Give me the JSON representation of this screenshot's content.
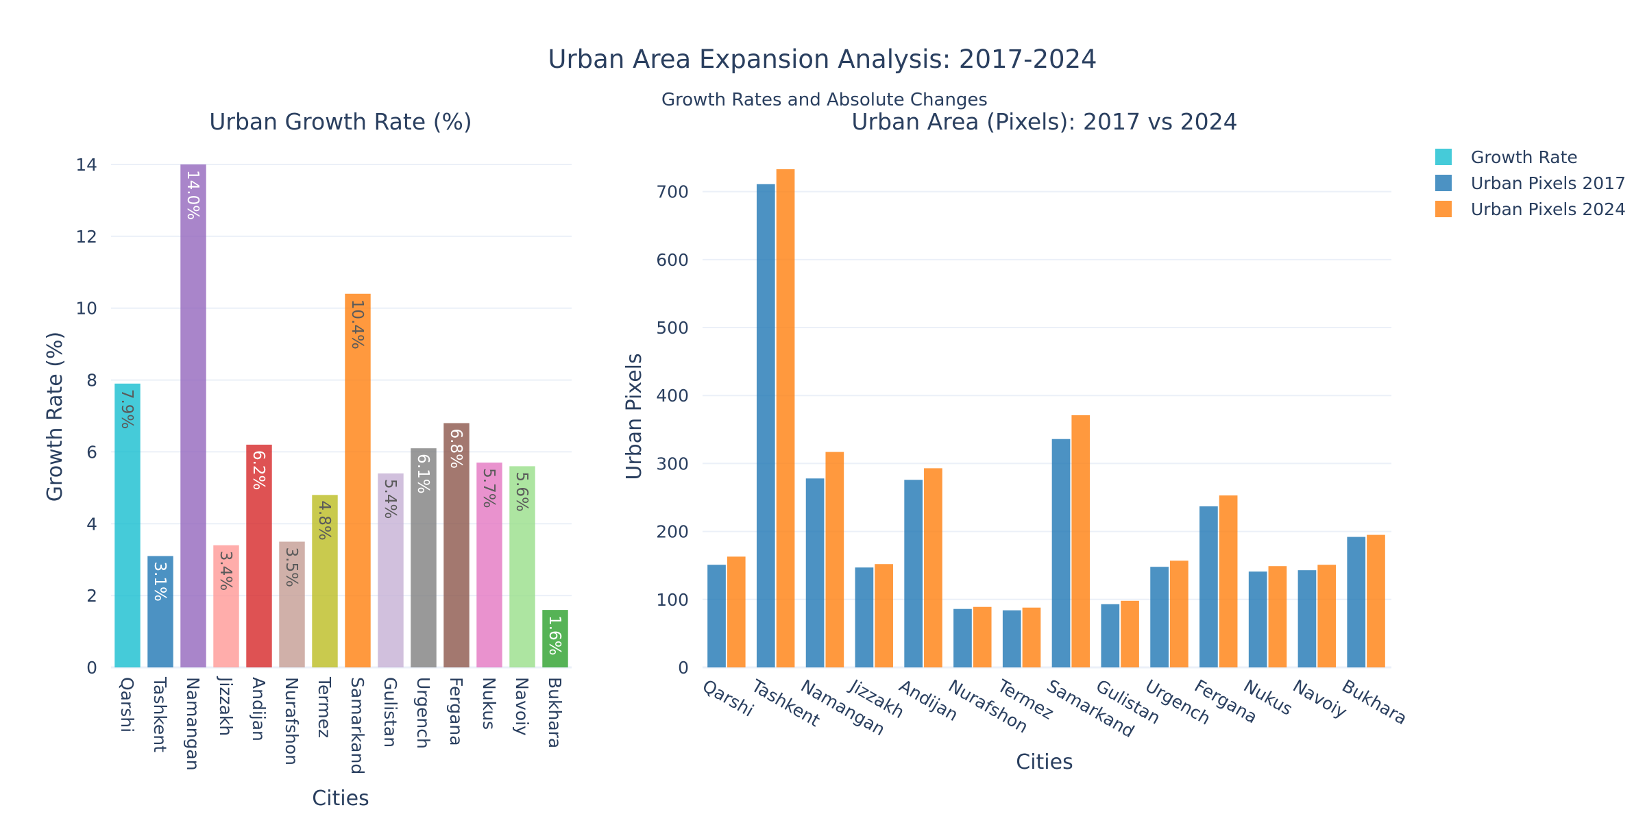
{
  "title": "Urban Area Expansion Analysis: 2017-2024",
  "subtitle": "Growth Rates and Absolute Changes",
  "chart_data": [
    {
      "type": "bar",
      "title": "Urban Growth Rate (%)",
      "xlabel": "Cities",
      "ylabel": "Growth Rate (%)",
      "ylim": [
        0,
        14
      ],
      "yticks": [
        0,
        2,
        4,
        6,
        8,
        10,
        12,
        14
      ],
      "grid": true,
      "categories": [
        "Qarshi",
        "Tashkent",
        "Namangan",
        "Jizzakh",
        "Andijan",
        "Nurafshon",
        "Termez",
        "Samarkand",
        "Gulistan",
        "Urgench",
        "Fergana",
        "Nukus",
        "Navoiy",
        "Bukhara"
      ],
      "values": [
        7.9,
        3.1,
        14.0,
        3.4,
        6.2,
        3.5,
        4.8,
        10.4,
        5.4,
        6.1,
        6.8,
        5.7,
        5.6,
        1.6
      ],
      "data_labels": [
        "7.9%",
        "3.1%",
        "14.0%",
        "3.4%",
        "6.2%",
        "3.5%",
        "4.8%",
        "10.4%",
        "5.4%",
        "6.1%",
        "6.8%",
        "5.7%",
        "5.6%",
        "1.6%"
      ],
      "bar_colors": [
        "#17becf",
        "#1f77b4",
        "#9467bd",
        "#ff9896",
        "#d62728",
        "#c49c94",
        "#bcbd22",
        "#ff7f0e",
        "#c5b0d5",
        "#7f7f7f",
        "#8c564b",
        "#e377c2",
        "#98df8a",
        "#2ca02c"
      ],
      "label_colors": [
        "#5a5a5a",
        "#ffffff",
        "#ffffff",
        "#5a5a5a",
        "#ffffff",
        "#5a5a5a",
        "#5a5a5a",
        "#5a5a5a",
        "#5a5a5a",
        "#ffffff",
        "#ffffff",
        "#5a5a5a",
        "#5a5a5a",
        "#ffffff"
      ]
    },
    {
      "type": "bar",
      "title": "Urban Area (Pixels): 2017 vs 2024",
      "xlabel": "Cities",
      "ylabel": "Urban Pixels",
      "ylim": [
        0,
        740
      ],
      "yticks": [
        0,
        100,
        200,
        300,
        400,
        500,
        600,
        700
      ],
      "grid": true,
      "categories": [
        "Qarshi",
        "Tashkent",
        "Namangan",
        "Jizzakh",
        "Andijan",
        "Nurafshon",
        "Termez",
        "Samarkand",
        "Gulistan",
        "Urgench",
        "Fergana",
        "Nukus",
        "Navoiy",
        "Bukhara"
      ],
      "series": [
        {
          "name": "Urban Pixels 2017",
          "color": "#1f77b4",
          "values": [
            151,
            711,
            278,
            147,
            276,
            86,
            84,
            336,
            93,
            148,
            237,
            141,
            143,
            192
          ]
        },
        {
          "name": "Urban Pixels 2024",
          "color": "#ff7f0e",
          "values": [
            163,
            733,
            317,
            152,
            293,
            89,
            88,
            371,
            98,
            157,
            253,
            149,
            151,
            195
          ]
        }
      ]
    }
  ],
  "legend": {
    "placement": "top-right",
    "items": [
      {
        "name": "Growth Rate",
        "color": "#17becf"
      },
      {
        "name": "Urban Pixels 2017",
        "color": "#1f77b4"
      },
      {
        "name": "Urban Pixels 2024",
        "color": "#ff7f0e"
      }
    ]
  }
}
